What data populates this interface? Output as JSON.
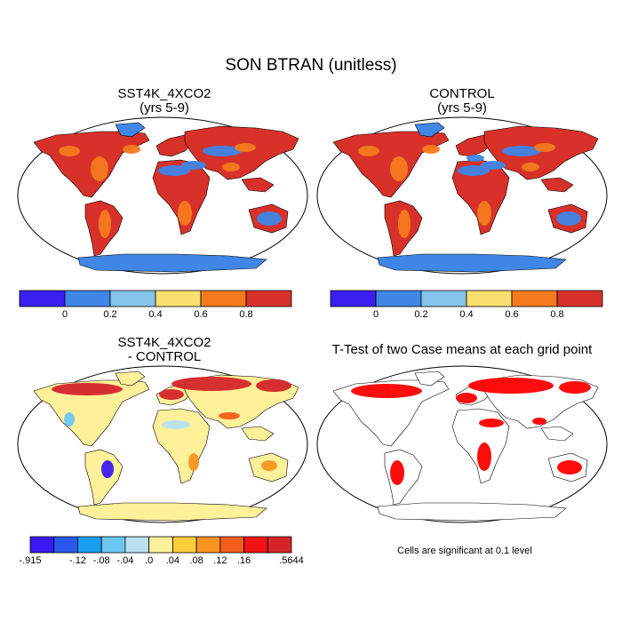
{
  "figure": {
    "title": "SON BTRAN (unitless)",
    "panels": [
      {
        "title_line1": "SST4K_4XCO2",
        "title_line2": "(yrs 5-9)"
      },
      {
        "title_line1": "CONTROL",
        "title_line2": "(yrs 5-9)"
      },
      {
        "title_line1": "SST4K_4XCO2",
        "title_line2": "- CONTROL"
      },
      {
        "title_line1": "T-Test of two Case means at each grid point",
        "title_line2": ""
      }
    ]
  },
  "colorbar_abs": {
    "colors": [
      "#3b1ef0",
      "#3f86e6",
      "#86c3ea",
      "#f8df6e",
      "#f57a1e",
      "#d7312a"
    ],
    "tick_labels": [
      "0",
      "0.2",
      "0.4",
      "0.6",
      "0.8"
    ]
  },
  "colorbar_diff": {
    "colors": [
      "#3a1af2",
      "#2a58e8",
      "#1a9ff0",
      "#6cc6f2",
      "#b8e0ee",
      "#fff09a",
      "#fccc3a",
      "#f99420",
      "#f45d18",
      "#f01414",
      "#d4242a"
    ],
    "tick_labels": [
      "-.915",
      "-.12",
      "-.08",
      "-.04",
      ".0",
      ".04",
      ".08",
      ".12",
      ".16",
      ".5644"
    ]
  },
  "ttest_note": "Cells are significant at 0.1 level",
  "map_colors": {
    "ocean": "#ffffff",
    "abs_antarctica": "#3f86e6",
    "abs_land": "#d7312a",
    "abs_dry": "#3f86e6",
    "abs_mid": "#f57a1e",
    "diff_antarctica": "#fff09a",
    "diff_land": "#fff09a",
    "diff_high": "#d4242a",
    "diff_low": "#3a1af2",
    "sig": "#ff0000"
  }
}
